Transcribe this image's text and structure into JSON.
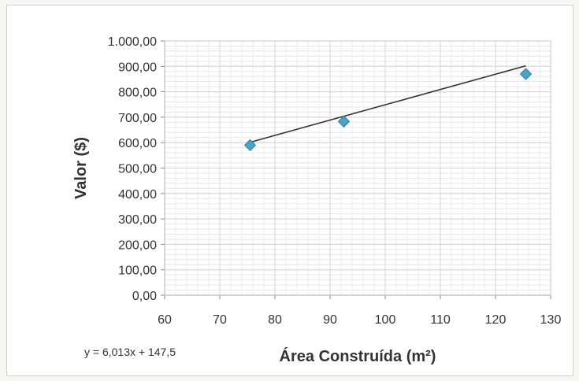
{
  "chart_data": {
    "type": "scatter",
    "xlabel": "Área Construída (m²)",
    "ylabel": "Valor ($)",
    "xlim": [
      60,
      130
    ],
    "ylim": [
      0,
      1000
    ],
    "x_ticks": [
      "60",
      "70",
      "80",
      "90",
      "100",
      "110",
      "120",
      "130"
    ],
    "y_ticks": [
      "0,00",
      "100,00",
      "200,00",
      "300,00",
      "400,00",
      "500,00",
      "600,00",
      "700,00",
      "800,00",
      "900,00",
      "1.000,00"
    ],
    "grid": true,
    "points": [
      {
        "x": 75.5,
        "y": 590
      },
      {
        "x": 92.5,
        "y": 683
      },
      {
        "x": 125.5,
        "y": 870
      }
    ],
    "trendline": {
      "slope": 6.013,
      "intercept": 147.5,
      "equation": "y = 6,013x + 147,5"
    },
    "colors": {
      "marker": "#4aa3c8",
      "trendline": "#333333",
      "grid": "#d4d4d4"
    }
  }
}
